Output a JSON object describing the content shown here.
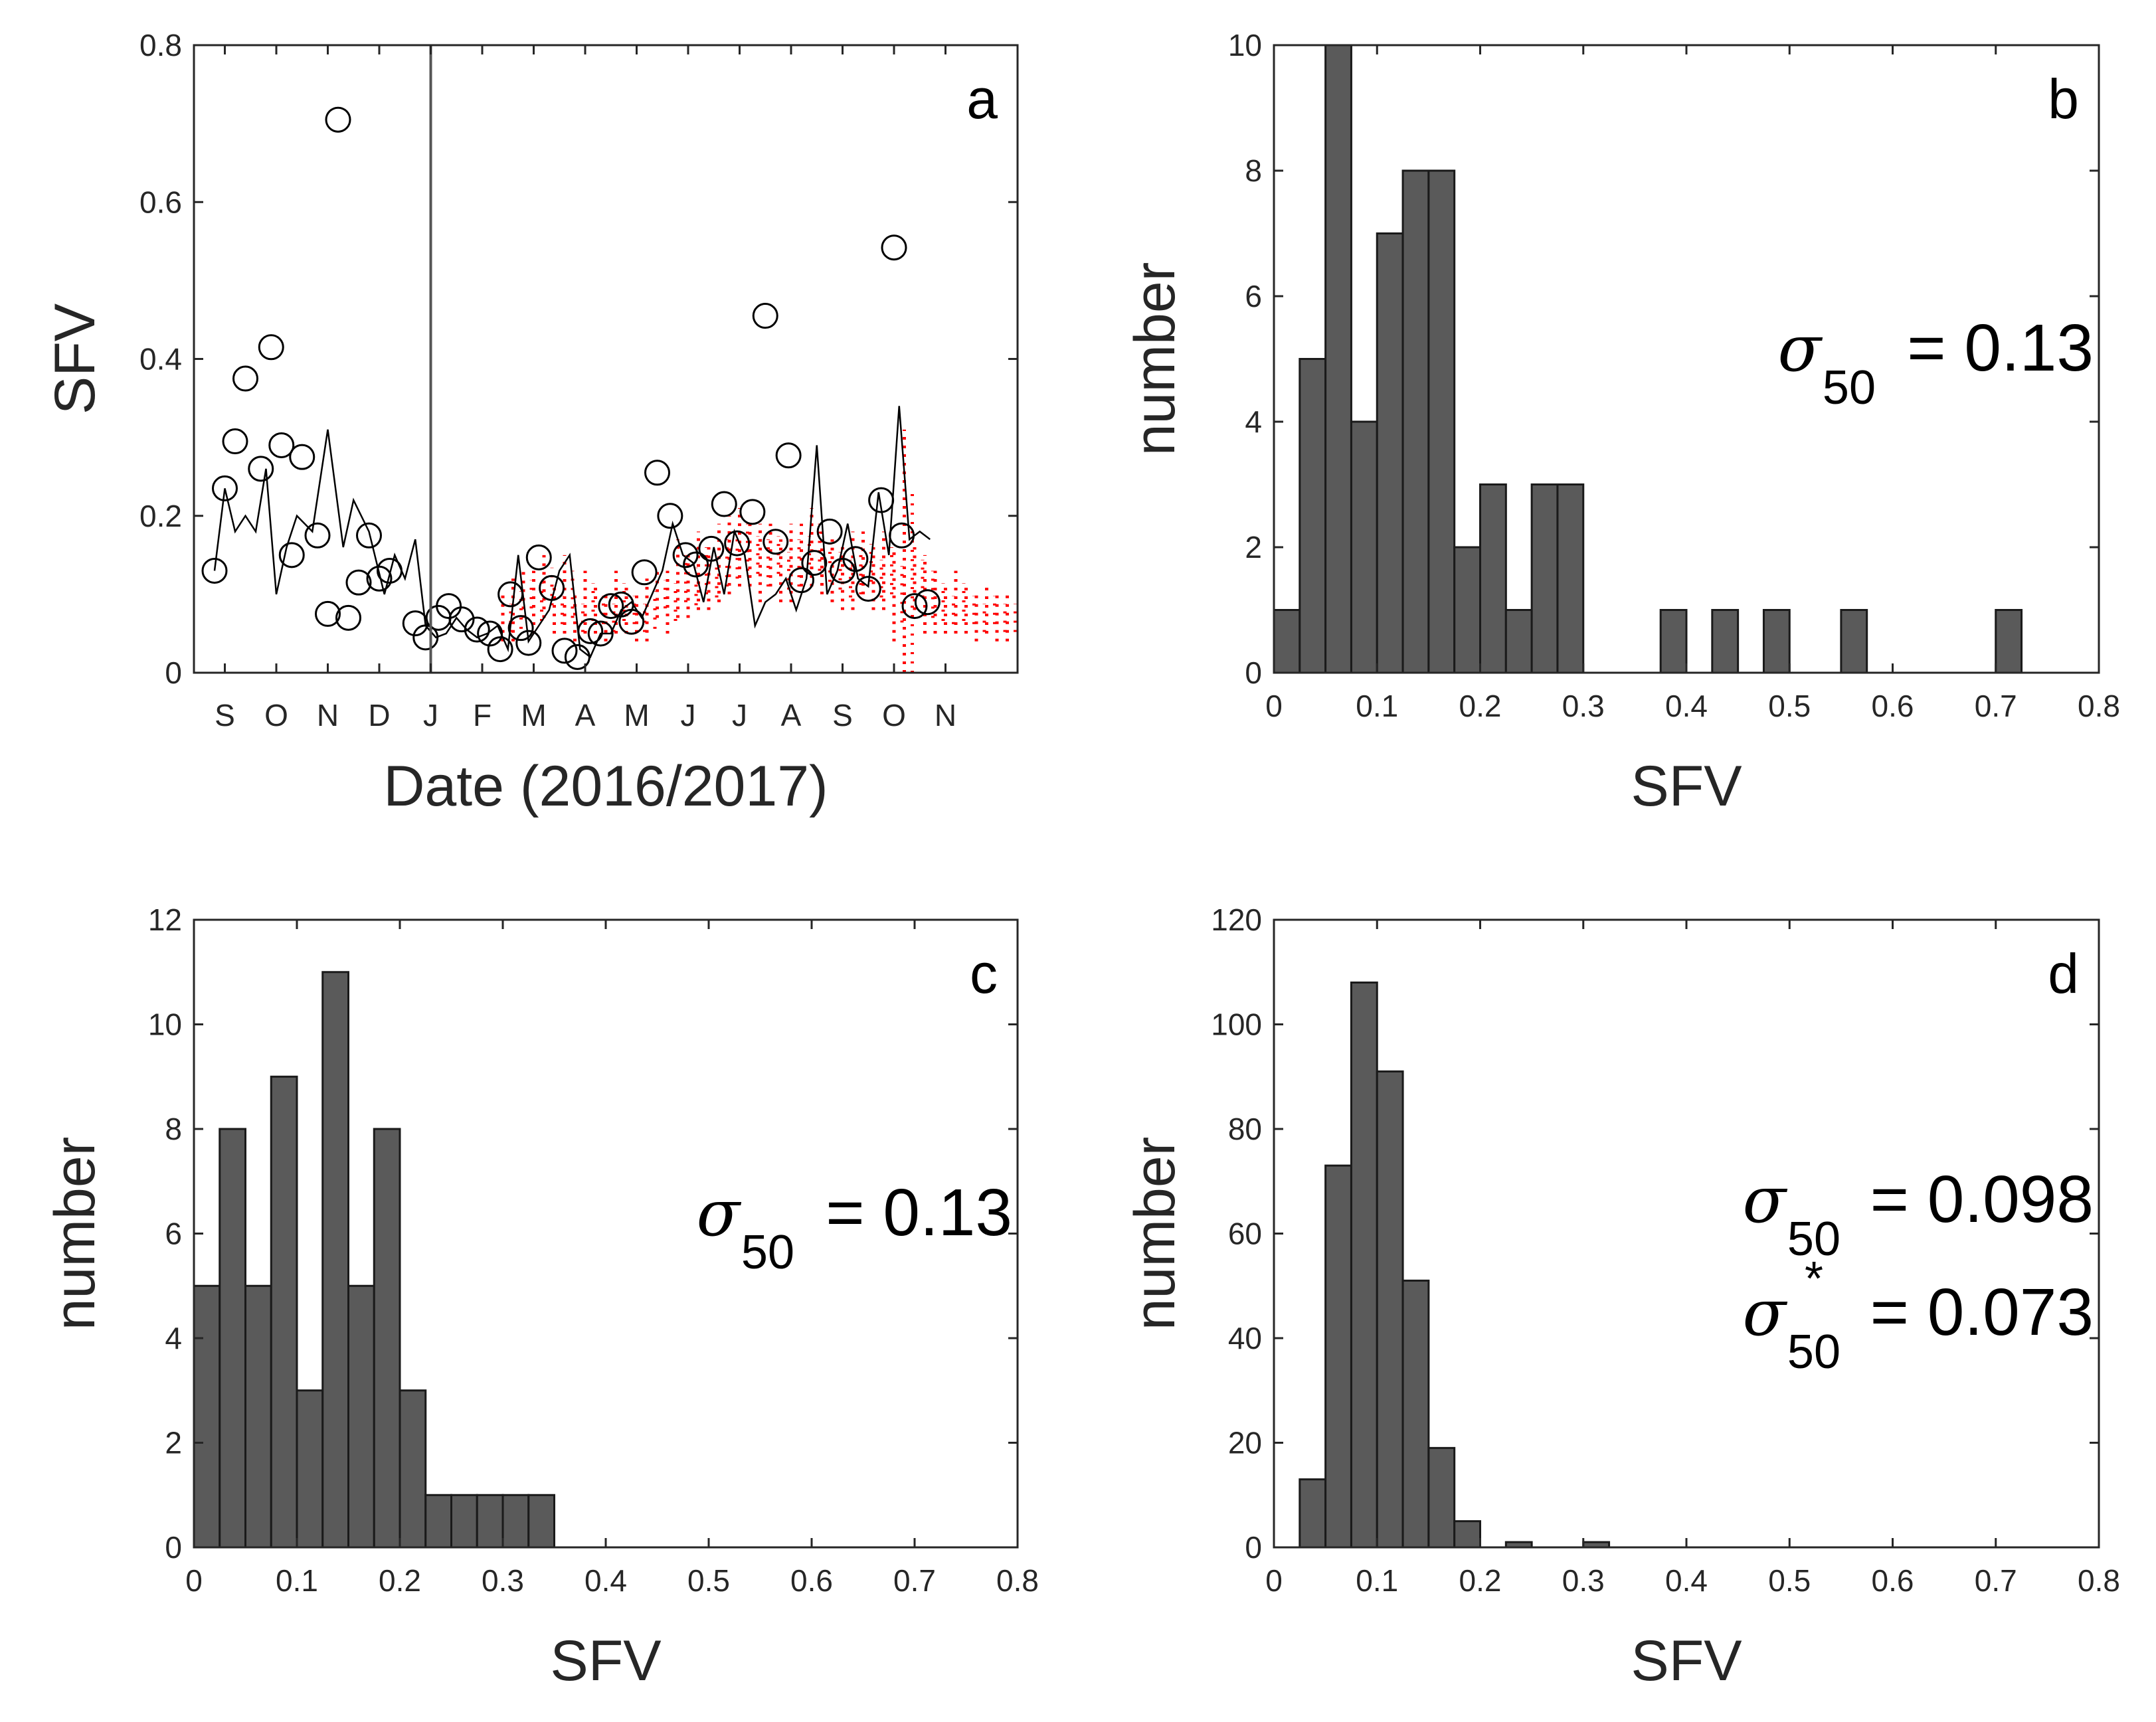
{
  "chart_data": [
    {
      "id": "a",
      "type": "scatter",
      "panel_label": "a",
      "xlabel": "Date (2016/2017)",
      "ylabel": "SFV",
      "ylim": [
        0,
        0.8
      ],
      "yticks": [
        "0",
        "0.2",
        "0.4",
        "0.6",
        "0.8"
      ],
      "xlim": [
        0,
        16
      ],
      "xtick_labels": [
        "S",
        "O",
        "N",
        "D",
        "J",
        "F",
        "M",
        "A",
        "M",
        "J",
        "J",
        "A",
        "S",
        "O",
        "N"
      ],
      "xtick_positions": [
        0.6,
        1.6,
        2.6,
        3.6,
        4.6,
        5.6,
        6.6,
        7.6,
        8.6,
        9.6,
        10.6,
        11.6,
        12.6,
        13.6,
        14.6
      ],
      "vline_x": 4.6,
      "circles": {
        "x": [
          0.4,
          0.6,
          0.8,
          1.0,
          1.3,
          1.5,
          1.7,
          1.9,
          2.1,
          2.4,
          2.6,
          2.8,
          3.0,
          3.2,
          3.4,
          3.6,
          3.8,
          4.3,
          4.5,
          4.75,
          4.95,
          5.2,
          5.5,
          5.75,
          5.95,
          6.15,
          6.35,
          6.5,
          6.7,
          6.95,
          7.2,
          7.45,
          7.7,
          7.9,
          8.1,
          8.3,
          8.5,
          8.75,
          9.0,
          9.25,
          9.55,
          9.75,
          10.05,
          10.3,
          10.55,
          10.85,
          11.1,
          11.3,
          11.55,
          11.8,
          12.05,
          12.35,
          12.6,
          12.85,
          13.1,
          13.35,
          13.6,
          13.75,
          14.0,
          14.25
        ],
        "y": [
          0.13,
          0.235,
          0.295,
          0.375,
          0.26,
          0.415,
          0.29,
          0.15,
          0.275,
          0.175,
          0.075,
          0.705,
          0.07,
          0.115,
          0.175,
          0.12,
          0.13,
          0.063,
          0.045,
          0.07,
          0.085,
          0.068,
          0.055,
          0.05,
          0.03,
          0.1,
          0.057,
          0.038,
          0.147,
          0.108,
          0.028,
          0.02,
          0.053,
          0.05,
          0.085,
          0.087,
          0.065,
          0.128,
          0.255,
          0.2,
          0.15,
          0.138,
          0.158,
          0.215,
          0.165,
          0.205,
          0.455,
          0.167,
          0.277,
          0.118,
          0.14,
          0.18,
          0.13,
          0.145,
          0.107,
          0.22,
          0.542,
          0.175,
          0.085,
          0.09
        ]
      },
      "line": {
        "x": [
          0.4,
          0.6,
          0.8,
          1.0,
          1.2,
          1.4,
          1.6,
          1.8,
          2.0,
          2.3,
          2.6,
          2.9,
          3.1,
          3.4,
          3.7,
          3.9,
          4.1,
          4.3,
          4.5,
          4.7,
          4.9,
          5.1,
          5.3,
          5.5,
          5.7,
          5.9,
          6.1,
          6.3,
          6.5,
          6.7,
          6.9,
          7.1,
          7.3,
          7.5,
          7.7,
          7.9,
          8.1,
          8.3,
          8.5,
          8.7,
          8.9,
          9.1,
          9.3,
          9.5,
          9.7,
          9.9,
          10.1,
          10.3,
          10.5,
          10.7,
          10.9,
          11.1,
          11.3,
          11.5,
          11.7,
          11.9,
          12.1,
          12.3,
          12.5,
          12.7,
          12.9,
          13.1,
          13.3,
          13.5,
          13.7,
          13.9,
          14.1,
          14.3
        ],
        "y": [
          0.13,
          0.235,
          0.18,
          0.2,
          0.18,
          0.26,
          0.1,
          0.16,
          0.2,
          0.18,
          0.31,
          0.16,
          0.22,
          0.18,
          0.1,
          0.15,
          0.12,
          0.17,
          0.06,
          0.045,
          0.05,
          0.07,
          0.055,
          0.045,
          0.05,
          0.06,
          0.03,
          0.15,
          0.04,
          0.06,
          0.08,
          0.13,
          0.15,
          0.03,
          0.02,
          0.05,
          0.05,
          0.08,
          0.09,
          0.07,
          0.1,
          0.13,
          0.19,
          0.15,
          0.14,
          0.09,
          0.16,
          0.1,
          0.18,
          0.15,
          0.06,
          0.09,
          0.1,
          0.12,
          0.08,
          0.12,
          0.29,
          0.1,
          0.13,
          0.19,
          0.12,
          0.11,
          0.23,
          0.15,
          0.34,
          0.17,
          0.18,
          0.17
        ]
      },
      "red_band": {
        "x": [
          6.0,
          6.2,
          6.4,
          6.6,
          6.8,
          7.0,
          7.2,
          7.4,
          7.6,
          7.8,
          8.0,
          8.2,
          8.4,
          8.6,
          8.8,
          9.0,
          9.2,
          9.4,
          9.6,
          9.8,
          10.0,
          10.2,
          10.4,
          10.6,
          10.8,
          11.0,
          11.2,
          11.4,
          11.6,
          11.8,
          12.0,
          12.2,
          12.4,
          12.6,
          12.8,
          13.0,
          13.2,
          13.4,
          13.6,
          13.8,
          14.0,
          14.2,
          14.4,
          14.6,
          14.8,
          15.0,
          15.2,
          15.4,
          15.6,
          15.8
        ],
        "center": [
          0.07,
          0.08,
          0.1,
          0.09,
          0.11,
          0.08,
          0.1,
          0.07,
          0.09,
          0.08,
          0.07,
          0.09,
          0.08,
          0.07,
          0.08,
          0.1,
          0.09,
          0.12,
          0.11,
          0.13,
          0.12,
          0.14,
          0.15,
          0.16,
          0.15,
          0.14,
          0.15,
          0.13,
          0.14,
          0.15,
          0.16,
          0.14,
          0.13,
          0.12,
          0.13,
          0.14,
          0.12,
          0.13,
          0.1,
          0.11,
          0.12,
          0.1,
          0.09,
          0.08,
          0.09,
          0.08,
          0.07,
          0.08,
          0.07,
          0.07
        ],
        "spread": [
          0.03,
          0.04,
          0.03,
          0.04,
          0.04,
          0.03,
          0.05,
          0.03,
          0.04,
          0.03,
          0.03,
          0.04,
          0.03,
          0.03,
          0.04,
          0.03,
          0.04,
          0.05,
          0.04,
          0.05,
          0.04,
          0.05,
          0.05,
          0.05,
          0.04,
          0.05,
          0.04,
          0.04,
          0.05,
          0.04,
          0.05,
          0.04,
          0.04,
          0.04,
          0.05,
          0.04,
          0.04,
          0.05,
          0.06,
          0.2,
          0.04,
          0.05,
          0.04,
          0.03,
          0.04,
          0.03,
          0.03,
          0.03,
          0.03,
          0.03
        ]
      }
    },
    {
      "id": "b",
      "type": "bar",
      "panel_label": "b",
      "xlabel": "SFV",
      "ylabel": "number",
      "xlim": [
        0,
        0.8
      ],
      "ylim": [
        0,
        10
      ],
      "xticks": [
        "0",
        "0.1",
        "0.2",
        "0.3",
        "0.4",
        "0.5",
        "0.6",
        "0.7",
        "0.8"
      ],
      "yticks": [
        "0",
        "2",
        "4",
        "6",
        "8",
        "10"
      ],
      "bin_width": 0.025,
      "bin_start": 0,
      "values": [
        1,
        5,
        10,
        4,
        7,
        8,
        8,
        2,
        3,
        1,
        3,
        3,
        0,
        0,
        0,
        1,
        0,
        1,
        0,
        1,
        0,
        0,
        1,
        0,
        0,
        0,
        0,
        0,
        1,
        0,
        0,
        0
      ],
      "annotations": [
        {
          "symbol": "σ",
          "subscript": "50",
          "superscript": "",
          "text": "= 0.13"
        }
      ]
    },
    {
      "id": "c",
      "type": "bar",
      "panel_label": "c",
      "xlabel": "SFV",
      "ylabel": "number",
      "xlim": [
        0,
        0.8
      ],
      "ylim": [
        0,
        12
      ],
      "xticks": [
        "0",
        "0.1",
        "0.2",
        "0.3",
        "0.4",
        "0.5",
        "0.6",
        "0.7",
        "0.8"
      ],
      "yticks": [
        "0",
        "2",
        "4",
        "6",
        "8",
        "10",
        "12"
      ],
      "bin_width": 0.025,
      "bin_start": 0,
      "values": [
        5,
        8,
        5,
        9,
        3,
        11,
        5,
        8,
        3,
        1,
        1,
        1,
        1,
        1
      ],
      "annotations": [
        {
          "symbol": "σ",
          "subscript": "50",
          "superscript": "",
          "text": "= 0.13"
        }
      ]
    },
    {
      "id": "d",
      "type": "bar",
      "panel_label": "d",
      "xlabel": "SFV",
      "ylabel": "number",
      "xlim": [
        0,
        0.8
      ],
      "ylim": [
        0,
        120
      ],
      "xticks": [
        "0",
        "0.1",
        "0.2",
        "0.3",
        "0.4",
        "0.5",
        "0.6",
        "0.7",
        "0.8"
      ],
      "yticks": [
        "0",
        "20",
        "40",
        "60",
        "80",
        "100",
        "120"
      ],
      "bin_width": 0.025,
      "bin_start": 0,
      "values": [
        0,
        13,
        73,
        108,
        91,
        51,
        19,
        5,
        0,
        1,
        0,
        0,
        1,
        0
      ],
      "annotations": [
        {
          "symbol": "σ",
          "subscript": "50",
          "superscript": "",
          "text": "= 0.098"
        },
        {
          "symbol": "σ",
          "subscript": "50",
          "superscript": "*",
          "text": "= 0.073"
        }
      ]
    }
  ]
}
